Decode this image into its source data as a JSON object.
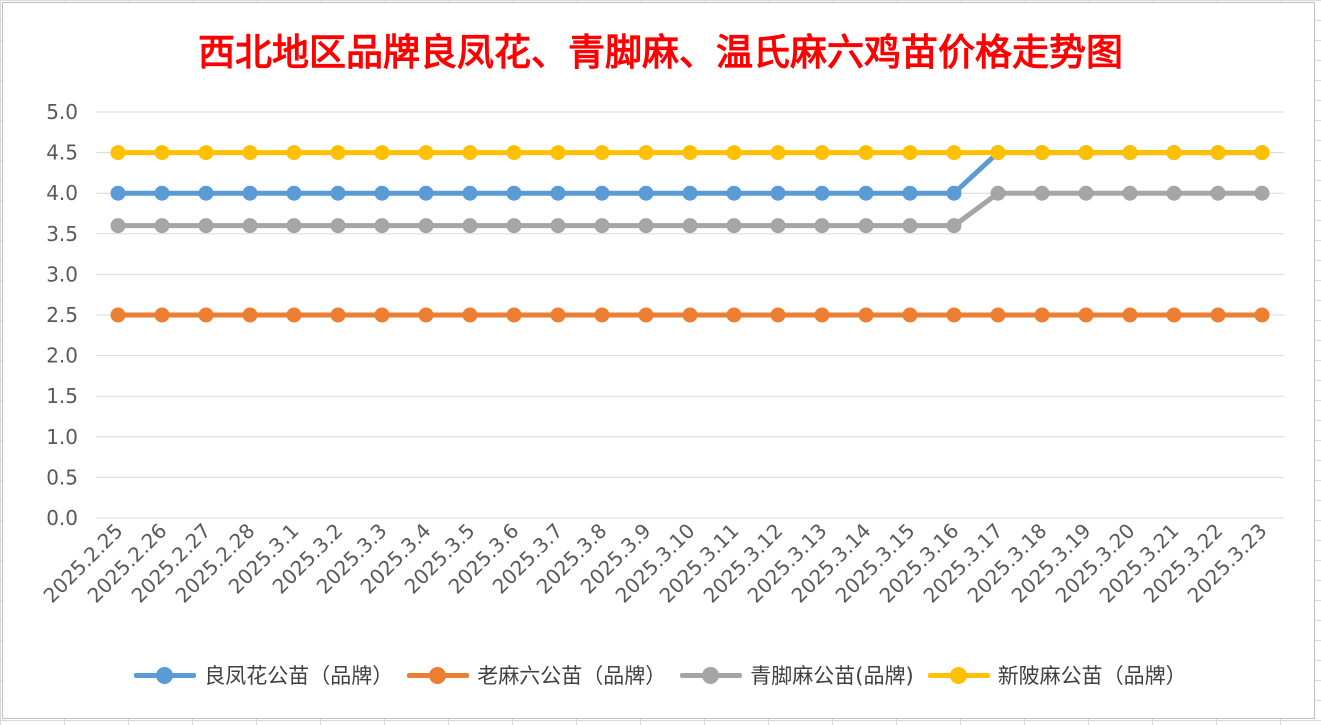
{
  "chart_data": {
    "type": "line",
    "title": "西北地区品牌良凤花、青脚麻、温氏麻六鸡苗价格走势图",
    "xlabel": "",
    "ylabel": "",
    "ylim": [
      0,
      5
    ],
    "yticks": [
      "0.0",
      "0.5",
      "1.0",
      "1.5",
      "2.0",
      "2.5",
      "3.0",
      "3.5",
      "4.0",
      "4.5",
      "5.0"
    ],
    "grid": true,
    "legend_position": "bottom",
    "categories": [
      "2025.2.25",
      "2025.2.26",
      "2025.2.27",
      "2025.2.28",
      "2025.3.1",
      "2025.3.2",
      "2025.3.3",
      "2025.3.4",
      "2025.3.5",
      "2025.3.6",
      "2025.3.7",
      "2025.3.8",
      "2025.3.9",
      "2025.3.10",
      "2025.3.11",
      "2025.3.12",
      "2025.3.13",
      "2025.3.14",
      "2025.3.15",
      "2025.3.16",
      "2025.3.17",
      "2025.3.18",
      "2025.3.19",
      "2025.3.20",
      "2025.3.21",
      "2025.3.22",
      "2025.3.23"
    ],
    "series": [
      {
        "name": "良凤花公苗（品牌）",
        "color": "#5b9bd5",
        "values": [
          4.0,
          4.0,
          4.0,
          4.0,
          4.0,
          4.0,
          4.0,
          4.0,
          4.0,
          4.0,
          4.0,
          4.0,
          4.0,
          4.0,
          4.0,
          4.0,
          4.0,
          4.0,
          4.0,
          4.0,
          4.5,
          4.5,
          4.5,
          4.5,
          4.5,
          4.5,
          4.5
        ]
      },
      {
        "name": "老麻六公苗（品牌）",
        "color": "#ed7d31",
        "values": [
          2.5,
          2.5,
          2.5,
          2.5,
          2.5,
          2.5,
          2.5,
          2.5,
          2.5,
          2.5,
          2.5,
          2.5,
          2.5,
          2.5,
          2.5,
          2.5,
          2.5,
          2.5,
          2.5,
          2.5,
          2.5,
          2.5,
          2.5,
          2.5,
          2.5,
          2.5,
          2.5
        ]
      },
      {
        "name": "青脚麻公苗(品牌)",
        "color": "#a5a5a5",
        "values": [
          3.6,
          3.6,
          3.6,
          3.6,
          3.6,
          3.6,
          3.6,
          3.6,
          3.6,
          3.6,
          3.6,
          3.6,
          3.6,
          3.6,
          3.6,
          3.6,
          3.6,
          3.6,
          3.6,
          3.6,
          4.0,
          4.0,
          4.0,
          4.0,
          4.0,
          4.0,
          4.0
        ]
      },
      {
        "name": "新陂麻公苗（品牌）",
        "color": "#ffc000",
        "values": [
          4.5,
          4.5,
          4.5,
          4.5,
          4.5,
          4.5,
          4.5,
          4.5,
          4.5,
          4.5,
          4.5,
          4.5,
          4.5,
          4.5,
          4.5,
          4.5,
          4.5,
          4.5,
          4.5,
          4.5,
          4.5,
          4.5,
          4.5,
          4.5,
          4.5,
          4.5,
          4.5
        ]
      }
    ]
  }
}
